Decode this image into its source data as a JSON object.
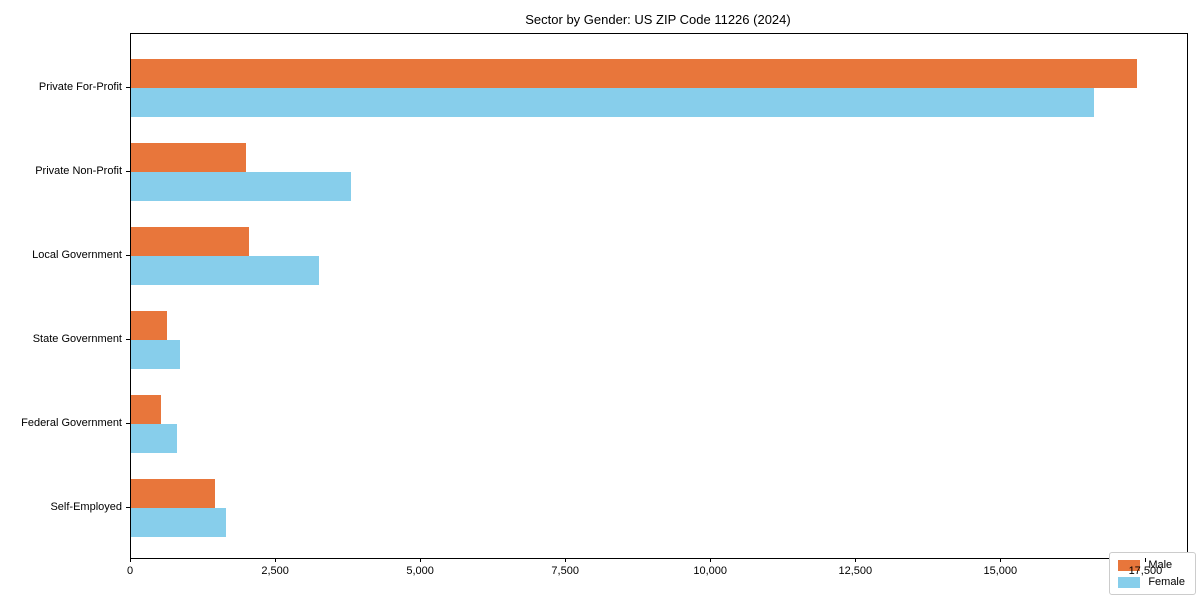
{
  "chart_data": {
    "type": "bar",
    "orientation": "horizontal",
    "title": "Sector by Gender: US ZIP Code 11226 (2024)",
    "categories": [
      "Private For-Profit",
      "Private Non-Profit",
      "Local Government",
      "State Government",
      "Federal Government",
      "Self-Employed"
    ],
    "series": [
      {
        "name": "Male",
        "color": "#e8763b",
        "values": [
          17330,
          1980,
          2030,
          620,
          510,
          1450
        ]
      },
      {
        "name": "Female",
        "color": "#87ceeb",
        "values": [
          16590,
          3790,
          3240,
          850,
          800,
          1630
        ]
      }
    ],
    "xlabel": "",
    "ylabel": "",
    "xlim": [
      0,
      18200
    ],
    "xticks": [
      0,
      2500,
      5000,
      7500,
      10000,
      12500,
      15000,
      17500
    ],
    "xtick_labels": [
      "0",
      "2,500",
      "5,000",
      "7,500",
      "10,000",
      "12,500",
      "15,000",
      "17,500"
    ],
    "grid": false,
    "legend_position": "lower right"
  },
  "legend": {
    "items": [
      {
        "label": "Male"
      },
      {
        "label": "Female"
      }
    ]
  }
}
